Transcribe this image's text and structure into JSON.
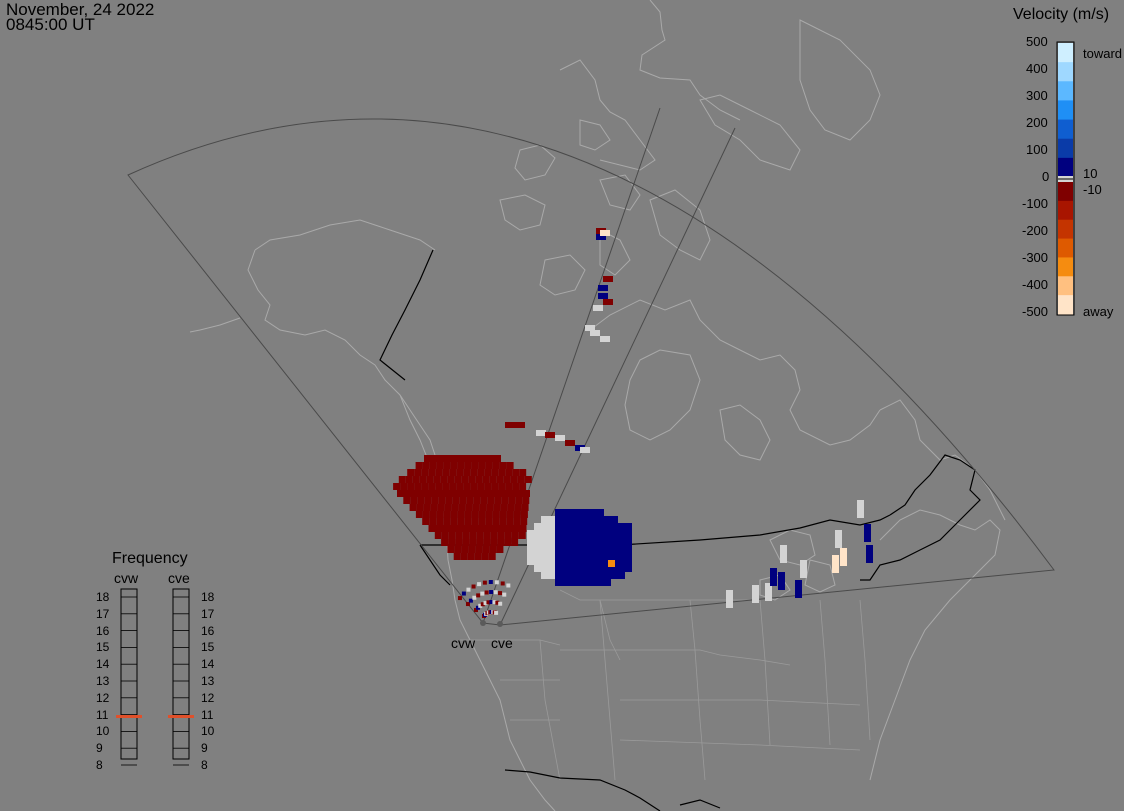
{
  "header": {
    "date": "November, 24 2022",
    "time": "0845:00 UT"
  },
  "velocity_scale": {
    "title": "Velocity (m/s)",
    "toward_label": "toward",
    "away_label": "away",
    "upper_ticks": [
      "500",
      "400",
      "300",
      "200",
      "100",
      "0"
    ],
    "small_ticks": [
      "10",
      "-10"
    ],
    "lower_ticks": [
      "-100",
      "-200",
      "-300",
      "-400",
      "-500"
    ],
    "toward_colors": [
      "#cfefff",
      "#9fd8ff",
      "#5cb8ff",
      "#1f8ff5",
      "#0f5ed0",
      "#0a3ba8",
      "#00007f"
    ],
    "away_colors": [
      "#7f0000",
      "#a81500",
      "#c43400",
      "#de5a00",
      "#f58c10",
      "#ffc080",
      "#ffe4c8"
    ],
    "ground_scatter_color": "#d3d3d3"
  },
  "frequency_panel": {
    "title": "Frequency",
    "radars": [
      {
        "name": "cvw",
        "current_mhz": 10.6
      },
      {
        "name": "cve",
        "current_mhz": 10.6
      }
    ],
    "ticks": [
      "18",
      "17",
      "16",
      "15",
      "14",
      "13",
      "12",
      "11",
      "10",
      "9",
      "8"
    ],
    "marker_color": "#e0502a"
  },
  "radar_labels": [
    "cvw",
    "cve"
  ],
  "map": {
    "background": "#808080",
    "coastline_color": "#a8a8a8",
    "border_color": "#000000",
    "fov_color": "#4d4d4d"
  }
}
